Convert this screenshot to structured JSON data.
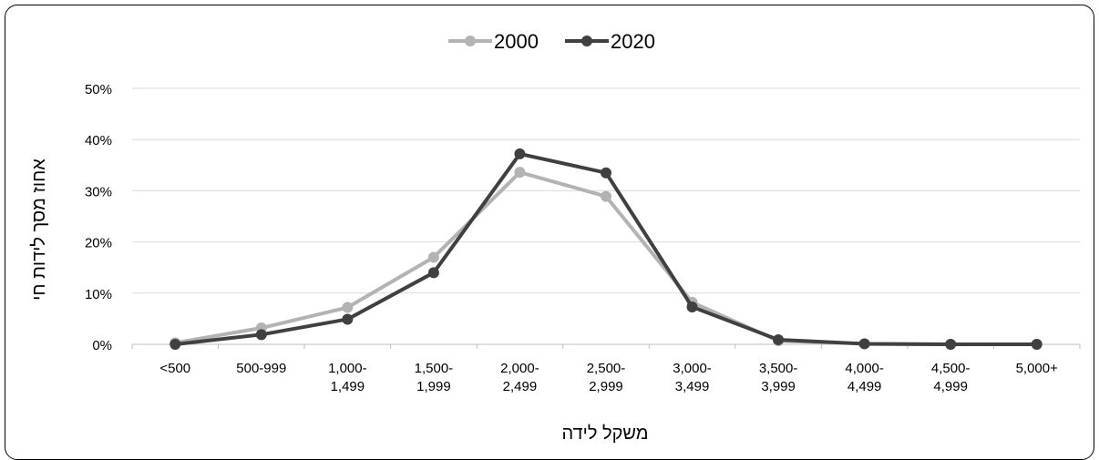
{
  "chart_data": {
    "type": "line",
    "categories": [
      "<500",
      "500-999",
      "1,000-\n1,499",
      "1,500-\n1,999",
      "2,000-\n2,499",
      "2,500-\n2,999",
      "3,000-\n3,499",
      "3,500-\n3,999",
      "4,000-\n4,499",
      "4,500-\n4,999",
      "5,000+"
    ],
    "series": [
      {
        "name": "2000",
        "color": "#b3b3b3",
        "values": [
          0.3,
          3.2,
          7.2,
          17.0,
          33.6,
          28.9,
          8.2,
          0.7,
          0.1,
          0.0,
          0.0
        ]
      },
      {
        "name": "2020",
        "color": "#404040",
        "values": [
          0.0,
          1.9,
          4.9,
          14.0,
          37.2,
          33.5,
          7.3,
          0.9,
          0.1,
          0.0,
          0.0
        ]
      }
    ],
    "yticks": [
      "0%",
      "10%",
      "20%",
      "30%",
      "40%",
      "50%"
    ],
    "ylim": [
      0,
      50
    ],
    "xlabel": "משקל לידה",
    "ylabel": "אחוז מסך לידות חי",
    "grid": true,
    "legend_position": "top-center"
  }
}
